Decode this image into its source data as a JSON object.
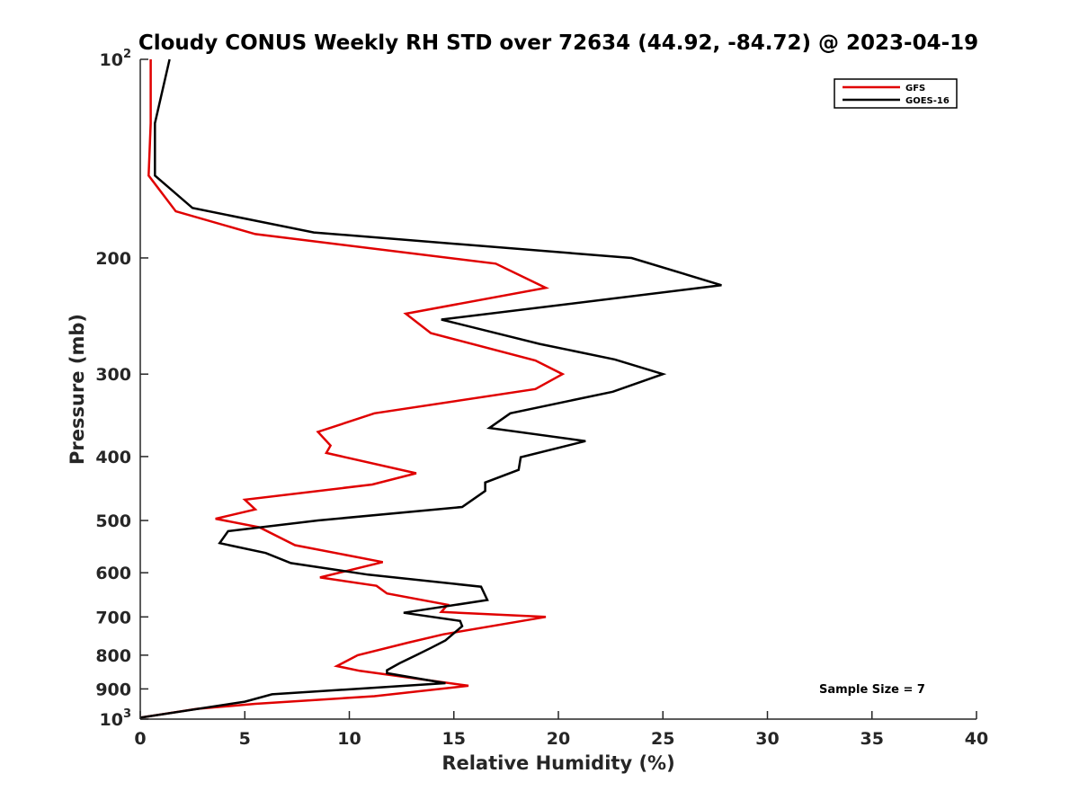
{
  "chart_data": {
    "type": "line",
    "title": "Cloudy CONUS Weekly RH STD over 72634 (44.92, -84.72) @ 2023-04-19",
    "xlabel": "Relative Humidity (%)",
    "ylabel": "Pressure (mb)",
    "xlim": [
      0,
      40
    ],
    "ylim": [
      100,
      1000
    ],
    "y_scale": "log",
    "y_reversed": true,
    "grid": false,
    "x_ticks": [
      0,
      5,
      10,
      15,
      20,
      25,
      30,
      35,
      40
    ],
    "x_tick_labels": [
      "0",
      "5",
      "10",
      "15",
      "20",
      "25",
      "30",
      "35",
      "40"
    ],
    "y_ticks": [
      100,
      200,
      300,
      400,
      500,
      600,
      700,
      800,
      900,
      1000
    ],
    "y_tick_labels": [
      {
        "base": "10",
        "exp": "2"
      },
      {
        "base": "200",
        "exp": ""
      },
      {
        "base": "300",
        "exp": ""
      },
      {
        "base": "400",
        "exp": ""
      },
      {
        "base": "500",
        "exp": ""
      },
      {
        "base": "600",
        "exp": ""
      },
      {
        "base": "700",
        "exp": ""
      },
      {
        "base": "800",
        "exp": ""
      },
      {
        "base": "900",
        "exp": ""
      },
      {
        "base": "10",
        "exp": "3"
      }
    ],
    "legend_position": "top-right",
    "annotation": "Sample Size = 7",
    "series": [
      {
        "name": "GFS",
        "color": "#e00000",
        "points": [
          [
            0.5,
            100
          ],
          [
            0.5,
            125
          ],
          [
            0.4,
            150
          ],
          [
            1.7,
            170
          ],
          [
            5.5,
            184
          ],
          [
            17,
            204
          ],
          [
            19.4,
            222
          ],
          [
            12.7,
            243
          ],
          [
            13.9,
            260
          ],
          [
            18.9,
            286
          ],
          [
            20.2,
            300
          ],
          [
            18.9,
            316
          ],
          [
            11.2,
            344
          ],
          [
            8.5,
            367
          ],
          [
            9.1,
            385
          ],
          [
            8.9,
            395
          ],
          [
            13.2,
            424
          ],
          [
            11.1,
            441
          ],
          [
            5,
            465
          ],
          [
            5.5,
            481
          ],
          [
            3.6,
            497
          ],
          [
            5.7,
            512
          ],
          [
            7.4,
            545
          ],
          [
            11.6,
            578
          ],
          [
            8.6,
            610
          ],
          [
            11.3,
            628
          ],
          [
            11.8,
            645
          ],
          [
            14.7,
            671
          ],
          [
            14.4,
            688
          ],
          [
            19.4,
            700
          ],
          [
            14.5,
            744
          ],
          [
            12.8,
            766
          ],
          [
            10.4,
            800
          ],
          [
            9.4,
            831
          ],
          [
            10.5,
            845
          ],
          [
            15.7,
            890
          ],
          [
            11.2,
            923
          ],
          [
            5.5,
            948
          ],
          [
            2.7,
            965
          ],
          [
            0,
            995
          ]
        ]
      },
      {
        "name": "GOES-16",
        "color": "#000000",
        "points": [
          [
            1.4,
            100
          ],
          [
            0.7,
            125
          ],
          [
            0.7,
            150
          ],
          [
            2.5,
            168
          ],
          [
            8.3,
            183
          ],
          [
            23.5,
            200
          ],
          [
            27.8,
            220
          ],
          [
            14.4,
            248
          ],
          [
            19.1,
            270
          ],
          [
            22.7,
            285
          ],
          [
            25,
            300
          ],
          [
            22.6,
            319
          ],
          [
            17.7,
            344
          ],
          [
            16.7,
            362
          ],
          [
            21.3,
            379
          ],
          [
            18.2,
            401
          ],
          [
            18.1,
            419
          ],
          [
            16.5,
            438
          ],
          [
            16.5,
            451
          ],
          [
            15.4,
            477
          ],
          [
            8.5,
            500
          ],
          [
            4.2,
            519
          ],
          [
            3.8,
            541
          ],
          [
            6,
            560
          ],
          [
            7.2,
            580
          ],
          [
            10.9,
            604
          ],
          [
            16.3,
            630
          ],
          [
            16.6,
            660
          ],
          [
            12.6,
            690
          ],
          [
            15.3,
            710
          ],
          [
            15.4,
            723
          ],
          [
            14.6,
            760
          ],
          [
            13.9,
            780
          ],
          [
            13.2,
            800
          ],
          [
            12.4,
            823
          ],
          [
            11.8,
            843
          ],
          [
            11.8,
            852
          ],
          [
            14.6,
            882
          ],
          [
            6.3,
            917
          ],
          [
            5,
            941
          ],
          [
            0,
            995
          ]
        ]
      }
    ]
  }
}
